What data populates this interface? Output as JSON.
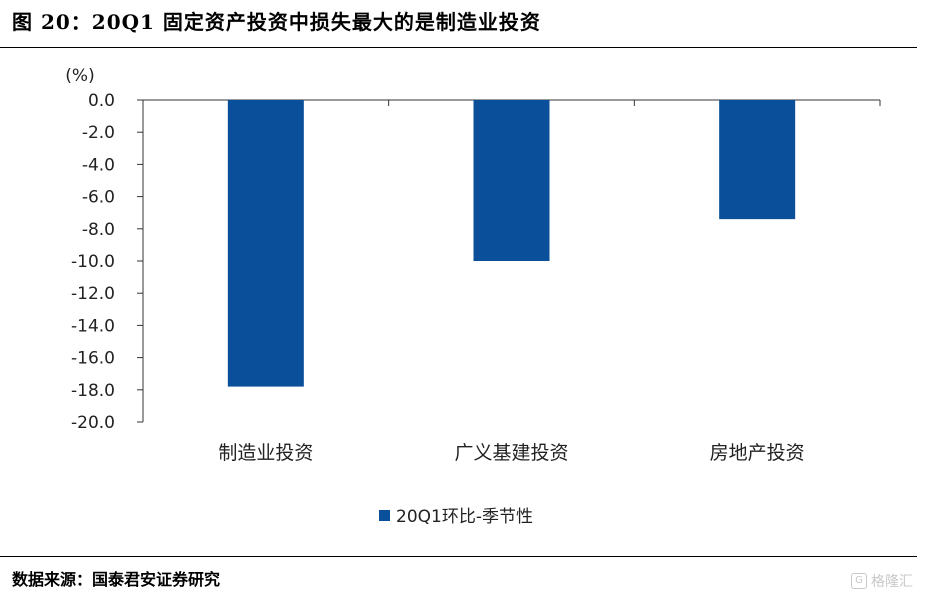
{
  "title": "图 20：20Q1 固定资产投资中损失最大的是制造业投资",
  "source": "数据来源：国泰君安证券研究",
  "watermark": "格隆汇",
  "chart_data": {
    "type": "bar",
    "unit_label": "(%)",
    "categories": [
      "制造业投资",
      "广义基建投资",
      "房地产投资"
    ],
    "series": [
      {
        "name": "20Q1环比-季节性",
        "values": [
          -17.8,
          -10.0,
          -7.4
        ],
        "color": "#0a4f9a"
      }
    ],
    "ylim": [
      -20,
      0
    ],
    "yticks": [
      "0.0",
      "-2.0",
      "-4.0",
      "-6.0",
      "-8.0",
      "-10.0",
      "-12.0",
      "-14.0",
      "-16.0",
      "-18.0",
      "-20.0"
    ],
    "ytick_values": [
      0,
      -2,
      -4,
      -6,
      -8,
      -10,
      -12,
      -14,
      -16,
      -18,
      -20
    ],
    "legend_position": "bottom-center",
    "grid": false
  }
}
